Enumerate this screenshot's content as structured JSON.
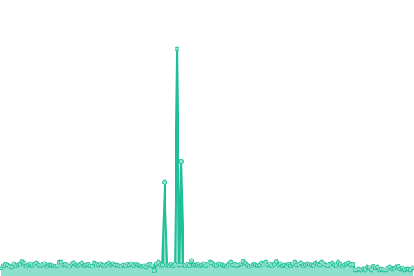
{
  "chart_data": {
    "type": "area",
    "title": "",
    "xlabel": "",
    "ylabel": "",
    "grid": false,
    "axes_visible": false,
    "line_color": "#1fbf98",
    "fill_color": "#8de0cb",
    "marker_fill": "#8de0cb",
    "xlim": [
      0,
      199
    ],
    "ylim": [
      0,
      400
    ],
    "values": [
      12,
      15,
      17,
      16,
      14,
      13,
      18,
      15,
      16,
      17,
      21,
      19,
      14,
      16,
      18,
      15,
      17,
      19,
      16,
      15,
      17,
      18,
      14,
      16,
      16,
      15,
      14,
      15,
      20,
      20,
      16,
      17,
      15,
      14,
      18,
      19,
      16,
      15,
      17,
      19,
      15,
      16,
      17,
      15,
      14,
      19,
      17,
      16,
      18,
      16,
      15,
      17,
      19,
      16,
      18,
      16,
      16,
      15,
      14,
      16,
      15,
      17,
      16,
      18,
      15,
      17,
      16,
      15,
      14,
      15,
      13,
      16,
      17,
      15,
      8,
      18,
      20,
      16,
      16,
      136,
      16,
      15,
      17,
      15,
      17,
      329,
      16,
      166,
      16,
      15,
      17,
      15,
      22,
      16,
      16,
      17,
      15,
      16,
      18,
      15,
      17,
      20,
      19,
      16,
      15,
      18,
      17,
      16,
      15,
      14,
      17,
      20,
      16,
      17,
      15,
      16,
      18,
      21,
      19,
      16,
      14,
      15,
      17,
      16,
      15,
      16,
      19,
      17,
      20,
      16,
      18,
      15,
      17,
      21,
      16,
      18,
      15,
      16,
      14,
      17,
      15,
      18,
      20,
      16,
      17,
      19,
      15,
      16,
      18,
      17,
      16,
      15,
      19,
      17,
      16,
      20,
      18,
      16,
      15,
      17,
      19,
      16,
      15,
      20,
      17,
      14,
      16,
      18,
      19,
      16,
      17,
      9,
      9,
      10,
      9,
      10,
      9,
      13,
      12,
      9,
      14,
      12,
      13,
      9,
      10,
      9,
      9,
      11,
      13,
      10,
      11,
      13,
      14,
      10,
      12,
      9,
      10,
      10,
      9,
      12
    ]
  }
}
